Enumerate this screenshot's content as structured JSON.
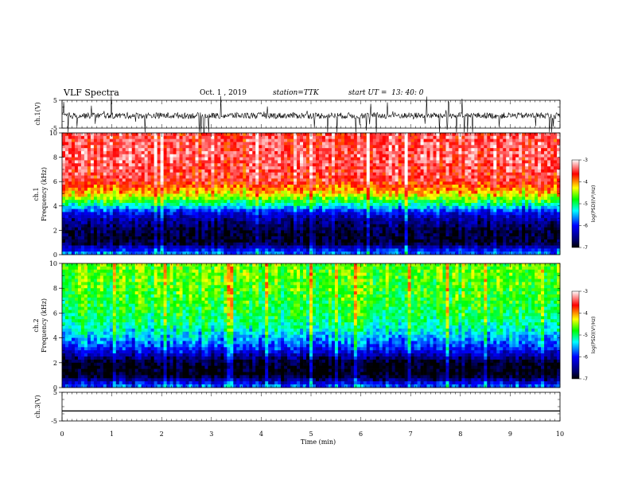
{
  "header": {
    "title": "VLF Spectra",
    "date": "Oct. 1 , 2019",
    "station": "station=TTK",
    "start": "start UT =  13: 40: 0"
  },
  "colors": {
    "scale": [
      "#000000",
      "#000066",
      "#0000ff",
      "#00ffff",
      "#00ff00",
      "#ffff00",
      "#ff0000",
      "#ffffff"
    ],
    "trace": "#000000"
  },
  "chart_data": [
    {
      "type": "line",
      "panel": "ch1-waveform",
      "ylabel": "ch.1(V)",
      "ylim": [
        -5,
        5
      ],
      "yticks": [
        "5",
        "-5"
      ],
      "xlim": [
        0,
        10
      ],
      "description_values": {
        "baseline": -0.5,
        "noise_range": [
          -3,
          3
        ]
      }
    },
    {
      "type": "heatmap",
      "panel": "ch1-spectrogram",
      "ylabel": "ch.1\nFrequency (kHz)",
      "ylim": [
        0,
        10
      ],
      "yticks": [
        "0",
        "2",
        "4",
        "6",
        "8",
        "10"
      ],
      "xlim": [
        0,
        10
      ],
      "colorbar": {
        "label": "log(PSD)(V²/Hz)",
        "range": [
          -7,
          -3
        ],
        "ticks": [
          "-3",
          "-4",
          "-5",
          "-6",
          "-7"
        ]
      },
      "profile_khz": [
        0,
        1,
        2,
        3,
        3.5,
        4,
        4.5,
        5,
        6,
        8,
        10
      ],
      "profile_logpsd": [
        -5.5,
        -6.9,
        -6.8,
        -6.4,
        -6.0,
        -5.3,
        -4.7,
        -4.2,
        -3.6,
        -3.4,
        -3.5
      ]
    },
    {
      "type": "heatmap",
      "panel": "ch2-spectrogram",
      "ylabel": "ch.2\nFrequency (kHz)",
      "ylim": [
        0,
        10
      ],
      "yticks": [
        "0",
        "2",
        "4",
        "6",
        "8",
        "10"
      ],
      "xlim": [
        0,
        10
      ],
      "colorbar": {
        "label": "log(PSD)(V²/Hz)",
        "range": [
          -7,
          -3
        ],
        "ticks": [
          "-3",
          "-4",
          "-5",
          "-6",
          "-7"
        ]
      },
      "profile_khz": [
        0,
        1,
        2,
        3,
        4,
        5,
        6,
        8,
        10
      ],
      "profile_logpsd": [
        -5.6,
        -7.0,
        -6.9,
        -6.0,
        -5.5,
        -5.1,
        -4.9,
        -4.7,
        -4.6
      ]
    },
    {
      "type": "line",
      "panel": "ch3-waveform",
      "ylabel": "ch.3(V)",
      "ylim": [
        -5,
        5
      ],
      "yticks": [
        "5",
        "-5"
      ],
      "xlim": [
        0,
        10
      ],
      "description_values": {
        "baseline": -1.5
      }
    }
  ],
  "xaxis": {
    "label": "Time (min)",
    "ticks": [
      "0",
      "1",
      "2",
      "3",
      "4",
      "5",
      "6",
      "7",
      "8",
      "9",
      "10"
    ]
  }
}
